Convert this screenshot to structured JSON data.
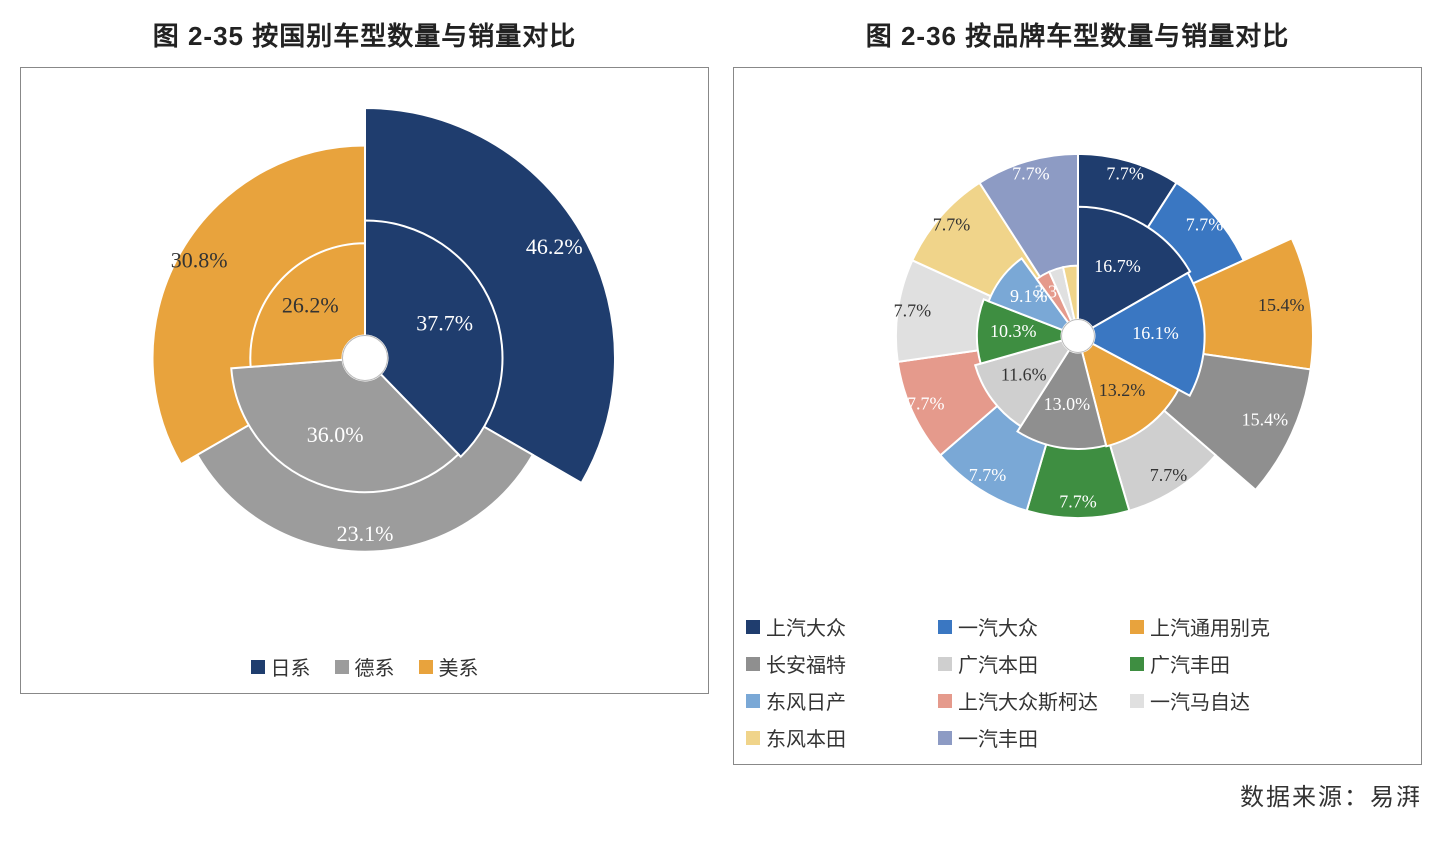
{
  "source_label": "数据来源：易湃",
  "chart_left": {
    "title": "图 2-35   按国别车型数量与销量对比",
    "type": "nested-polar-pie",
    "center_hole_radius_ratio": 0.09,
    "background_color": "#ffffff",
    "border_color": "#888888",
    "label_font": "SimSun",
    "label_color_on_fill": "#ffffff",
    "legend_position": "bottom-center",
    "series": [
      {
        "name": "日系",
        "color": "#1f3d6e",
        "inner_value": 37.7,
        "outer_value": 46.2,
        "inner_label": "37.7%",
        "outer_label": "46.2%"
      },
      {
        "name": "德系",
        "color": "#9c9c9c",
        "inner_value": 36.0,
        "outer_value": 23.1,
        "inner_label": "36.0%",
        "outer_label": "23.1%"
      },
      {
        "name": "美系",
        "color": "#e8a33d",
        "inner_value": 26.2,
        "outer_value": 30.8,
        "inner_label": "26.2%",
        "outer_label": "30.8%"
      }
    ]
  },
  "chart_right": {
    "title": "图 2-36   按品牌车型数量与销量对比",
    "type": "nested-polar-pie",
    "center_hole_radius_ratio": 0.07,
    "background_color": "#ffffff",
    "border_color": "#888888",
    "label_font": "SimSun",
    "legend_position": "bottom-grid-3col",
    "series": [
      {
        "name": "上汽大众",
        "color": "#1f3d6e",
        "inner_value": 16.7,
        "outer_value": 7.7,
        "inner_label": "16.7%",
        "outer_label": "7.7%"
      },
      {
        "name": "一汽大众",
        "color": "#3a77c2",
        "inner_value": 16.1,
        "outer_value": 7.7,
        "inner_label": "16.1%",
        "outer_label": "7.7%"
      },
      {
        "name": "上汽通用别克",
        "color": "#e8a33d",
        "inner_value": 13.2,
        "outer_value": 15.4,
        "inner_label": "13.2%",
        "outer_label": "15.4%"
      },
      {
        "name": "长安福特",
        "color": "#8f8f8f",
        "inner_value": 13.0,
        "outer_value": 15.4,
        "inner_label": "13.0%",
        "outer_label": "15.4%"
      },
      {
        "name": "广汽本田",
        "color": "#cfcfcf",
        "inner_value": 11.6,
        "outer_value": 7.7,
        "inner_label": "11.6%",
        "outer_label": "7.7%"
      },
      {
        "name": "广汽丰田",
        "color": "#3e8e41",
        "inner_value": 10.3,
        "outer_value": 7.7,
        "inner_label": "10.3%",
        "outer_label": "7.7%"
      },
      {
        "name": "东风日产",
        "color": "#7aa8d6",
        "inner_value": 9.1,
        "outer_value": 7.7,
        "inner_label": "9.1%",
        "outer_label": "7.7%"
      },
      {
        "name": "上汽大众斯柯达",
        "color": "#e59a8c",
        "inner_value": 3.3,
        "outer_value": 7.7,
        "inner_label": "3.3%",
        "outer_label": "7.7%"
      },
      {
        "name": "一汽马自达",
        "color": "#e0e0e0",
        "inner_value": 3.3,
        "outer_value": 7.7,
        "inner_label": "",
        "outer_label": "7.7%"
      },
      {
        "name": "东风本田",
        "color": "#f0d48a",
        "inner_value": 3.3,
        "outer_value": 7.7,
        "inner_label": "",
        "outer_label": "7.7%"
      },
      {
        "name": "一汽丰田",
        "color": "#8d9bc4",
        "inner_value": 0.1,
        "outer_value": 7.7,
        "inner_label": "",
        "outer_label": "7.7%"
      }
    ]
  }
}
